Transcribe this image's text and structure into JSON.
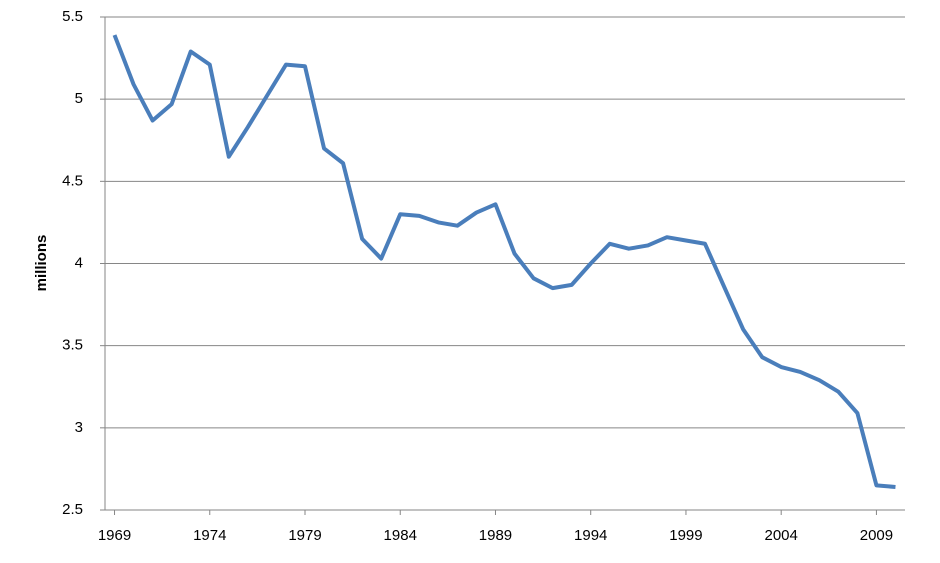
{
  "chart_data": {
    "type": "line",
    "y_label": "millions",
    "x": [
      1969,
      1970,
      1971,
      1972,
      1973,
      1974,
      1975,
      1976,
      1977,
      1978,
      1979,
      1980,
      1981,
      1982,
      1983,
      1984,
      1985,
      1986,
      1987,
      1988,
      1989,
      1990,
      1991,
      1992,
      1993,
      1994,
      1995,
      1996,
      1997,
      1998,
      1999,
      2000,
      2001,
      2002,
      2003,
      2004,
      2005,
      2006,
      2007,
      2008,
      2009,
      2010
    ],
    "series": [
      {
        "color": "#4a7ebb",
        "values": [
          5.39,
          5.09,
          4.87,
          4.97,
          5.29,
          5.21,
          4.65,
          4.83,
          5.02,
          5.21,
          5.2,
          4.7,
          4.61,
          4.15,
          4.03,
          4.3,
          4.29,
          4.25,
          4.23,
          4.31,
          4.36,
          4.06,
          3.91,
          3.85,
          3.87,
          4.0,
          4.12,
          4.09,
          4.11,
          4.16,
          4.14,
          4.12,
          3.86,
          3.6,
          3.43,
          3.37,
          3.34,
          3.29,
          3.22,
          3.09,
          2.65,
          2.64
        ]
      }
    ],
    "xlim": [
      1968.5,
      2010.5
    ],
    "xticks": [
      1969,
      1974,
      1979,
      1984,
      1989,
      1994,
      1999,
      2004,
      2009
    ],
    "ylim": [
      2.5,
      5.5
    ],
    "yticks": [
      2.5,
      3,
      3.5,
      4,
      4.5,
      5,
      5.5
    ],
    "grid": true
  }
}
